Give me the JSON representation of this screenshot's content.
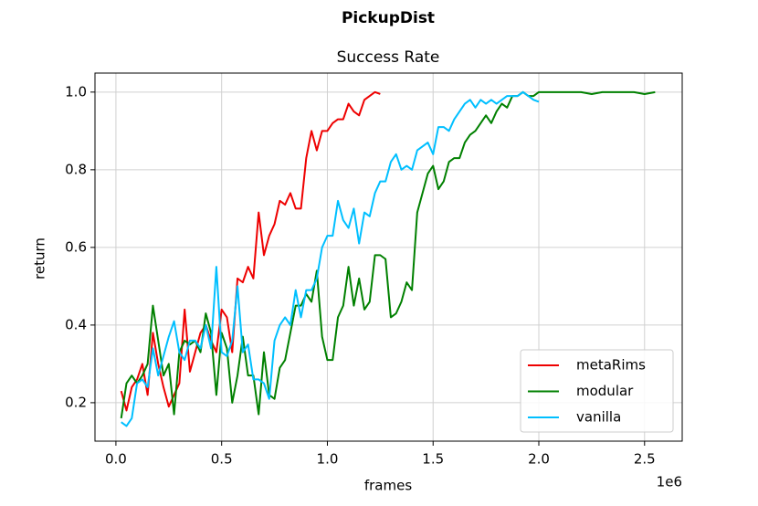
{
  "chart_data": {
    "type": "line",
    "title": "PickupDist",
    "subtitle": "Success Rate",
    "x_label": "frames",
    "y_label": "return",
    "x_offset_label": "1e6",
    "xlim": [
      -99000,
      2678000
    ],
    "ylim": [
      0.101,
      1.049
    ],
    "xticks": [
      {
        "value": 0,
        "label": "0.0"
      },
      {
        "value": 500000,
        "label": "0.5"
      },
      {
        "value": 1000000,
        "label": "1.0"
      },
      {
        "value": 1500000,
        "label": "1.5"
      },
      {
        "value": 2000000,
        "label": "2.0"
      },
      {
        "value": 2500000,
        "label": "2.5"
      }
    ],
    "yticks": [
      0.2,
      0.4,
      0.6,
      0.8,
      {
        "value": 1,
        "label": "1.0"
      }
    ],
    "grid": true,
    "legend": "lower right",
    "series": [
      {
        "name": "metaRims",
        "color": "#ee0000",
        "x": [
          25000,
          50000,
          75000,
          100000,
          125000,
          150000,
          175000,
          200000,
          225000,
          250000,
          275000,
          300000,
          325000,
          350000,
          375000,
          400000,
          425000,
          450000,
          475000,
          500000,
          525000,
          550000,
          575000,
          600000,
          625000,
          650000,
          675000,
          700000,
          725000,
          750000,
          775000,
          800000,
          825000,
          850000,
          875000,
          900000,
          925000,
          950000,
          975000,
          1000000,
          1025000,
          1050000,
          1075000,
          1100000,
          1125000,
          1150000,
          1175000,
          1200000,
          1225000,
          1250000
        ],
        "values": [
          0.23,
          0.18,
          0.24,
          0.26,
          0.3,
          0.22,
          0.38,
          0.3,
          0.24,
          0.19,
          0.22,
          0.25,
          0.44,
          0.28,
          0.33,
          0.38,
          0.4,
          0.36,
          0.33,
          0.44,
          0.42,
          0.33,
          0.52,
          0.51,
          0.55,
          0.52,
          0.69,
          0.58,
          0.63,
          0.66,
          0.72,
          0.71,
          0.74,
          0.7,
          0.7,
          0.83,
          0.9,
          0.85,
          0.9,
          0.9,
          0.92,
          0.93,
          0.93,
          0.97,
          0.95,
          0.94,
          0.98,
          0.99,
          1.0,
          0.995
        ]
      },
      {
        "name": "modular",
        "color": "#008000",
        "x": [
          25000,
          50000,
          75000,
          100000,
          125000,
          150000,
          175000,
          200000,
          225000,
          250000,
          275000,
          300000,
          325000,
          350000,
          375000,
          400000,
          425000,
          450000,
          475000,
          500000,
          525000,
          550000,
          575000,
          600000,
          625000,
          650000,
          675000,
          700000,
          725000,
          750000,
          775000,
          800000,
          825000,
          850000,
          875000,
          900000,
          925000,
          950000,
          975000,
          1000000,
          1025000,
          1050000,
          1075000,
          1100000,
          1125000,
          1150000,
          1175000,
          1200000,
          1225000,
          1250000,
          1275000,
          1300000,
          1325000,
          1350000,
          1375000,
          1400000,
          1425000,
          1450000,
          1475000,
          1500000,
          1525000,
          1550000,
          1575000,
          1600000,
          1625000,
          1650000,
          1675000,
          1700000,
          1725000,
          1750000,
          1775000,
          1800000,
          1825000,
          1850000,
          1875000,
          1900000,
          1925000,
          1950000,
          1975000,
          2000000,
          2050000,
          2100000,
          2150000,
          2200000,
          2250000,
          2300000,
          2350000,
          2400000,
          2450000,
          2500000,
          2550000
        ],
        "values": [
          0.16,
          0.25,
          0.27,
          0.25,
          0.27,
          0.3,
          0.45,
          0.36,
          0.27,
          0.3,
          0.17,
          0.33,
          0.36,
          0.35,
          0.36,
          0.33,
          0.43,
          0.38,
          0.22,
          0.38,
          0.34,
          0.2,
          0.27,
          0.37,
          0.27,
          0.27,
          0.17,
          0.33,
          0.22,
          0.21,
          0.29,
          0.31,
          0.38,
          0.45,
          0.45,
          0.48,
          0.46,
          0.54,
          0.37,
          0.31,
          0.31,
          0.42,
          0.45,
          0.55,
          0.45,
          0.52,
          0.44,
          0.46,
          0.58,
          0.58,
          0.57,
          0.42,
          0.43,
          0.46,
          0.51,
          0.49,
          0.69,
          0.74,
          0.79,
          0.81,
          0.75,
          0.77,
          0.82,
          0.83,
          0.83,
          0.87,
          0.89,
          0.9,
          0.92,
          0.94,
          0.92,
          0.95,
          0.97,
          0.96,
          0.99,
          0.99,
          1.0,
          0.99,
          0.99,
          1.0,
          1.0,
          1.0,
          1.0,
          1.0,
          0.995,
          1.0,
          1.0,
          1.0,
          1.0,
          0.995,
          1.0
        ]
      },
      {
        "name": "vanilla",
        "color": "#00bfff",
        "x": [
          25000,
          50000,
          75000,
          100000,
          125000,
          150000,
          175000,
          200000,
          225000,
          250000,
          275000,
          300000,
          325000,
          350000,
          375000,
          400000,
          425000,
          450000,
          475000,
          500000,
          525000,
          550000,
          575000,
          600000,
          625000,
          650000,
          675000,
          700000,
          725000,
          750000,
          775000,
          800000,
          825000,
          850000,
          875000,
          900000,
          925000,
          950000,
          975000,
          1000000,
          1025000,
          1050000,
          1075000,
          1100000,
          1125000,
          1150000,
          1175000,
          1200000,
          1225000,
          1250000,
          1275000,
          1300000,
          1325000,
          1350000,
          1375000,
          1400000,
          1425000,
          1450000,
          1475000,
          1500000,
          1525000,
          1550000,
          1575000,
          1600000,
          1625000,
          1650000,
          1675000,
          1700000,
          1725000,
          1750000,
          1775000,
          1800000,
          1825000,
          1850000,
          1875000,
          1900000,
          1925000,
          1950000,
          1975000,
          2000000
        ],
        "values": [
          0.15,
          0.14,
          0.16,
          0.25,
          0.26,
          0.24,
          0.34,
          0.27,
          0.32,
          0.37,
          0.41,
          0.33,
          0.31,
          0.36,
          0.36,
          0.34,
          0.4,
          0.34,
          0.55,
          0.33,
          0.32,
          0.36,
          0.5,
          0.33,
          0.35,
          0.26,
          0.26,
          0.25,
          0.21,
          0.36,
          0.4,
          0.42,
          0.4,
          0.49,
          0.42,
          0.49,
          0.49,
          0.52,
          0.6,
          0.63,
          0.63,
          0.72,
          0.67,
          0.65,
          0.7,
          0.61,
          0.69,
          0.68,
          0.74,
          0.77,
          0.77,
          0.82,
          0.84,
          0.8,
          0.81,
          0.8,
          0.85,
          0.86,
          0.87,
          0.84,
          0.91,
          0.91,
          0.9,
          0.93,
          0.95,
          0.97,
          0.98,
          0.96,
          0.98,
          0.97,
          0.98,
          0.97,
          0.98,
          0.99,
          0.99,
          0.99,
          1.0,
          0.99,
          0.98,
          0.975
        ]
      }
    ]
  }
}
